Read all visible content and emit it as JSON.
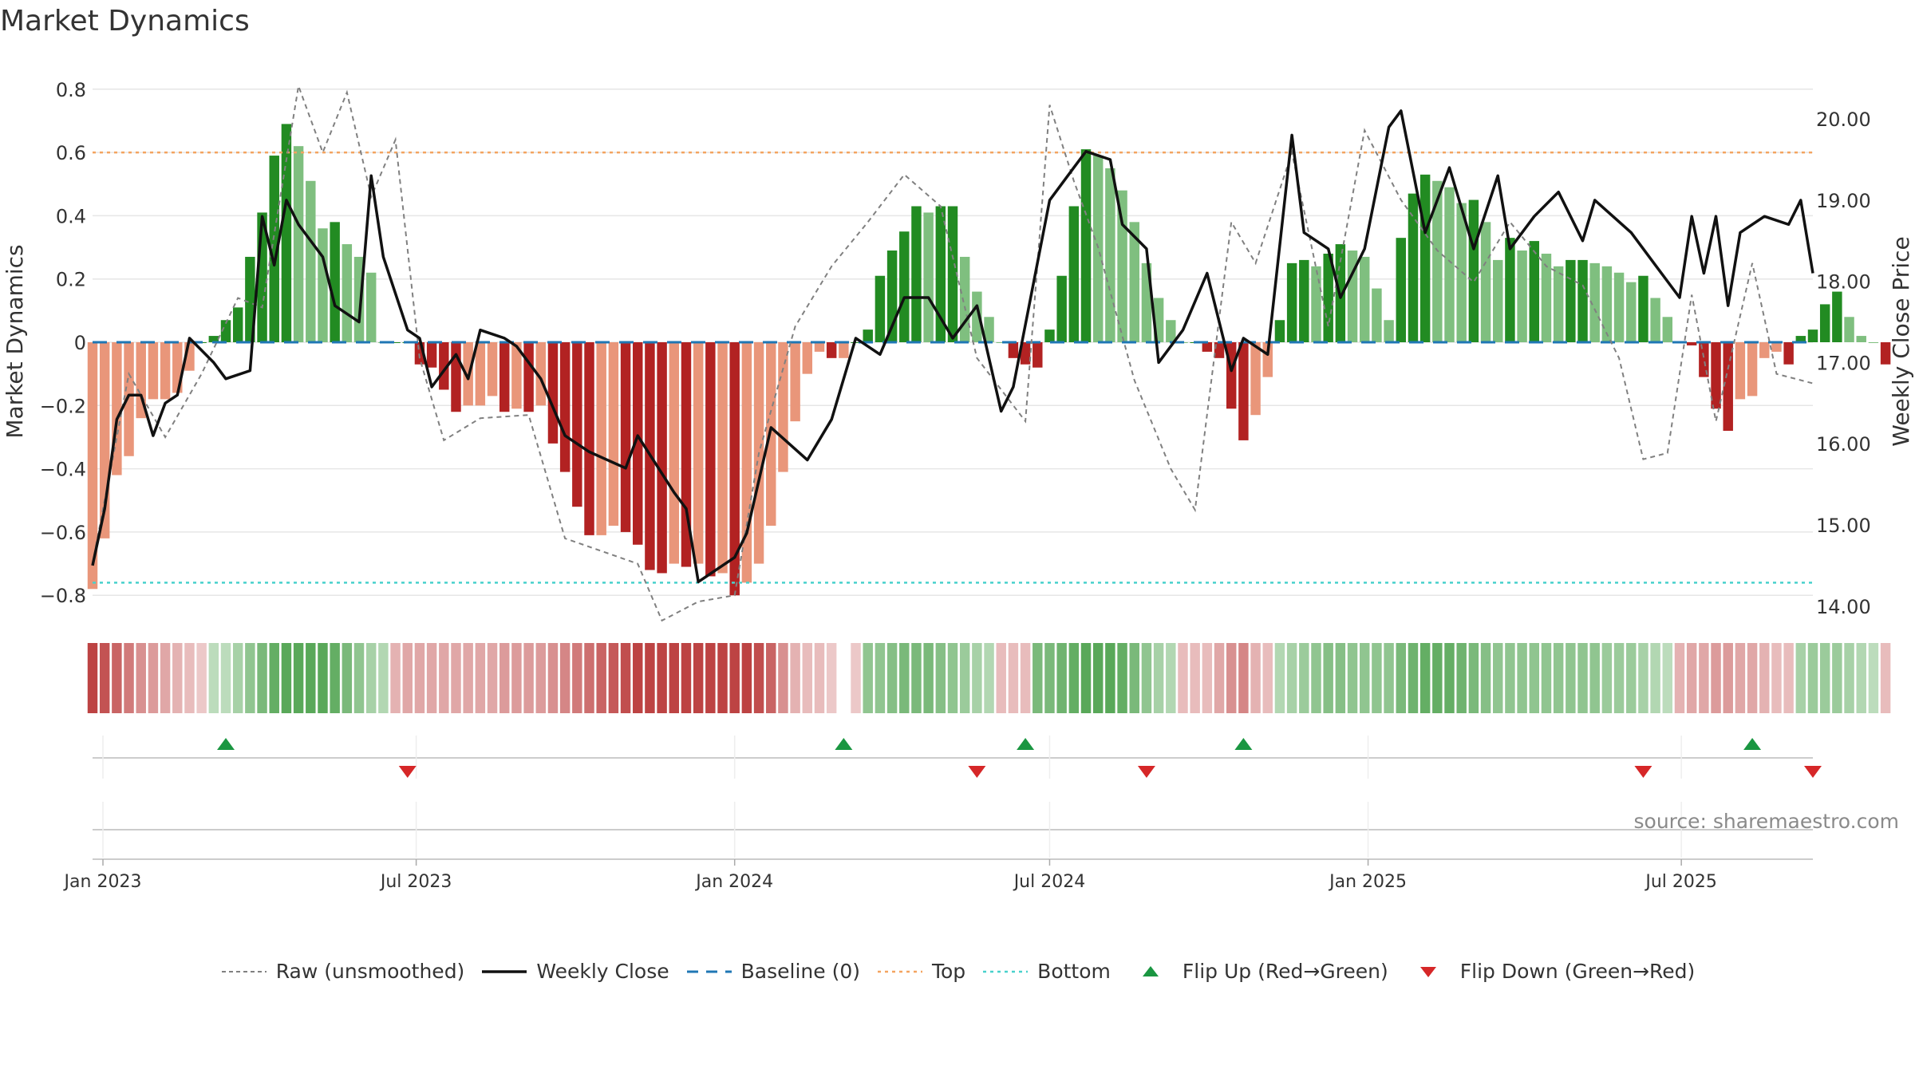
{
  "title": "Market Dynamics",
  "source": "source: sharemaestro.com",
  "colors": {
    "strong_green": "#228b22",
    "light_green": "#7fbf7f",
    "strong_red": "#b22222",
    "light_red": "#e9967a",
    "top_line": "#f4a460",
    "bottom_line": "#48d1cc",
    "baseline": "#1f77b4",
    "flip_up": "#1a9641",
    "flip_down": "#d62728"
  },
  "legend": [
    {
      "label": "Raw (unsmoothed)",
      "style": "dashed-gray"
    },
    {
      "label": "Weekly Close",
      "style": "solid-black"
    },
    {
      "label": "Baseline (0)",
      "style": "dashed-blue"
    },
    {
      "label": "Top",
      "style": "dotted-orange"
    },
    {
      "label": "Bottom",
      "style": "dotted-cyan"
    },
    {
      "label": "Flip Up (Red→Green)",
      "style": "triangle-up"
    },
    {
      "label": "Flip Down (Green→Red)",
      "style": "triangle-down"
    }
  ],
  "chart_data": {
    "type": "bar",
    "title": "Market Dynamics",
    "ylabel_left": "Market Dynamics",
    "ylabel_right": "Weekly Close Price",
    "ylim_left": [
      -0.86,
      0.86
    ],
    "ylim_right": [
      13.9,
      20.6
    ],
    "yticks_left": [
      "0.8",
      "0.6",
      "0.4",
      "0.2",
      "0",
      "−0.2",
      "−0.4",
      "−0.6",
      "−0.8"
    ],
    "yticks_left_values": [
      0.8,
      0.6,
      0.4,
      0.2,
      0,
      -0.2,
      -0.4,
      -0.6,
      -0.8
    ],
    "yticks_right": [
      "20.00",
      "19.00",
      "18.00",
      "17.00",
      "16.00",
      "15.00",
      "14.00"
    ],
    "yticks_right_values": [
      20,
      19,
      18,
      17,
      16,
      15,
      14
    ],
    "xticks": [
      "Jan 2023",
      "Jul 2023",
      "Jan 2024",
      "Jul 2024",
      "Jan 2025",
      "Jul 2025"
    ],
    "xticks_dates": [
      "2023-01-01",
      "2023-07-01",
      "2024-01-01",
      "2024-07-01",
      "2025-01-01",
      "2025-07-01"
    ],
    "x_range": [
      "2022-12-26",
      "2025-09-15"
    ],
    "top_threshold": 0.6,
    "bottom_threshold": -0.76,
    "grid": true,
    "legend_position": "bottom",
    "bar_series": {
      "name": "Market Dynamics",
      "start_date": "2022-12-26",
      "interval_days": 7,
      "values": [
        -0.78,
        -0.62,
        -0.42,
        -0.36,
        -0.24,
        -0.18,
        -0.18,
        -0.16,
        -0.09,
        0.0,
        0.02,
        0.07,
        0.11,
        0.27,
        0.41,
        0.59,
        0.69,
        0.62,
        0.51,
        0.36,
        0.38,
        0.31,
        0.27,
        0.22,
        0.0,
        0.0,
        0.0,
        -0.07,
        -0.08,
        -0.15,
        -0.22,
        -0.2,
        -0.2,
        -0.17,
        -0.22,
        -0.21,
        -0.22,
        -0.2,
        -0.32,
        -0.41,
        -0.52,
        -0.61,
        -0.61,
        -0.58,
        -0.6,
        -0.64,
        -0.72,
        -0.73,
        -0.7,
        -0.71,
        -0.7,
        -0.74,
        -0.73,
        -0.8,
        -0.76,
        -0.7,
        -0.58,
        -0.41,
        -0.25,
        -0.1,
        -0.03,
        -0.05,
        -0.05,
        0.0,
        0.04,
        0.21,
        0.29,
        0.35,
        0.43,
        0.41,
        0.43,
        0.43,
        0.27,
        0.16,
        0.08,
        0.0,
        -0.05,
        -0.07,
        -0.08,
        0.04,
        0.21,
        0.43,
        0.61,
        0.59,
        0.55,
        0.48,
        0.38,
        0.25,
        0.14,
        0.07,
        0.0,
        0.0,
        -0.03,
        -0.05,
        -0.21,
        -0.31,
        -0.23,
        -0.11,
        0.07,
        0.25,
        0.26,
        0.24,
        0.28,
        0.31,
        0.29,
        0.27,
        0.17,
        0.07,
        0.33,
        0.47,
        0.53,
        0.51,
        0.49,
        0.44,
        0.45,
        0.38,
        0.26,
        0.33,
        0.29,
        0.32,
        0.28,
        0.24,
        0.26,
        0.26,
        0.25,
        0.24,
        0.22,
        0.19,
        0.21,
        0.14,
        0.08,
        0.0,
        -0.01,
        -0.11,
        -0.21,
        -0.28,
        -0.18,
        -0.17,
        -0.05,
        -0.03,
        -0.07,
        0.02,
        0.04,
        0.12,
        0.16,
        0.08,
        0.02,
        0.0,
        -0.07
      ]
    },
    "raw_series": {
      "name": "Raw (unsmoothed)",
      "points": [
        [
          "2022-12-26",
          -0.7
        ],
        [
          "2023-01-16",
          -0.1
        ],
        [
          "2023-02-06",
          -0.3
        ],
        [
          "2023-02-27",
          -0.1
        ],
        [
          "2023-03-20",
          0.14
        ],
        [
          "2023-04-03",
          0.11
        ],
        [
          "2023-04-24",
          0.81
        ],
        [
          "2023-05-08",
          0.6
        ],
        [
          "2023-05-22",
          0.79
        ],
        [
          "2023-06-05",
          0.46
        ],
        [
          "2023-06-19",
          0.64
        ],
        [
          "2023-07-03",
          -0.05
        ],
        [
          "2023-07-17",
          -0.31
        ],
        [
          "2023-08-07",
          -0.24
        ],
        [
          "2023-09-04",
          -0.23
        ],
        [
          "2023-09-25",
          -0.62
        ],
        [
          "2023-10-16",
          -0.66
        ],
        [
          "2023-11-06",
          -0.7
        ],
        [
          "2023-11-20",
          -0.88
        ],
        [
          "2023-12-11",
          -0.82
        ],
        [
          "2024-01-01",
          -0.8
        ],
        [
          "2024-01-15",
          -0.35
        ],
        [
          "2024-02-05",
          0.05
        ],
        [
          "2024-02-26",
          0.24
        ],
        [
          "2024-03-18",
          0.38
        ],
        [
          "2024-04-08",
          0.53
        ],
        [
          "2024-04-29",
          0.43
        ],
        [
          "2024-05-20",
          -0.05
        ],
        [
          "2024-06-17",
          -0.25
        ],
        [
          "2024-07-01",
          0.75
        ],
        [
          "2024-07-15",
          0.51
        ],
        [
          "2024-07-29",
          0.3
        ],
        [
          "2024-08-19",
          -0.12
        ],
        [
          "2024-09-09",
          -0.4
        ],
        [
          "2024-09-23",
          -0.53
        ],
        [
          "2024-10-14",
          0.38
        ],
        [
          "2024-10-28",
          0.25
        ],
        [
          "2024-11-18",
          0.6
        ],
        [
          "2024-12-09",
          0.05
        ],
        [
          "2024-12-30",
          0.67
        ],
        [
          "2025-01-20",
          0.45
        ],
        [
          "2025-02-10",
          0.29
        ],
        [
          "2025-03-03",
          0.19
        ],
        [
          "2025-03-24",
          0.38
        ],
        [
          "2025-04-14",
          0.24
        ],
        [
          "2025-05-05",
          0.18
        ],
        [
          "2025-05-26",
          -0.05
        ],
        [
          "2025-06-09",
          -0.37
        ],
        [
          "2025-06-23",
          -0.35
        ],
        [
          "2025-07-07",
          0.15
        ],
        [
          "2025-07-21",
          -0.25
        ],
        [
          "2025-08-11",
          0.25
        ],
        [
          "2025-08-25",
          -0.1
        ],
        [
          "2025-09-15",
          -0.13
        ]
      ]
    },
    "close_series": {
      "name": "Weekly Close",
      "points": [
        [
          "2022-12-26",
          14.5
        ],
        [
          "2023-01-02",
          15.2
        ],
        [
          "2023-01-09",
          16.3
        ],
        [
          "2023-01-16",
          16.6
        ],
        [
          "2023-01-23",
          16.6
        ],
        [
          "2023-01-30",
          16.1
        ],
        [
          "2023-02-06",
          16.5
        ],
        [
          "2023-02-13",
          16.6
        ],
        [
          "2023-02-20",
          17.3
        ],
        [
          "2023-03-06",
          17.0
        ],
        [
          "2023-03-13",
          16.8
        ],
        [
          "2023-03-27",
          16.9
        ],
        [
          "2023-04-03",
          18.8
        ],
        [
          "2023-04-10",
          18.2
        ],
        [
          "2023-04-17",
          19.0
        ],
        [
          "2023-04-24",
          18.7
        ],
        [
          "2023-05-08",
          18.3
        ],
        [
          "2023-05-15",
          17.7
        ],
        [
          "2023-05-29",
          17.5
        ],
        [
          "2023-06-05",
          19.3
        ],
        [
          "2023-06-12",
          18.3
        ],
        [
          "2023-06-26",
          17.4
        ],
        [
          "2023-07-03",
          17.3
        ],
        [
          "2023-07-10",
          16.7
        ],
        [
          "2023-07-17",
          16.9
        ],
        [
          "2023-07-24",
          17.1
        ],
        [
          "2023-07-31",
          16.8
        ],
        [
          "2023-08-07",
          17.4
        ],
        [
          "2023-08-21",
          17.3
        ],
        [
          "2023-08-28",
          17.2
        ],
        [
          "2023-09-11",
          16.8
        ],
        [
          "2023-09-25",
          16.1
        ],
        [
          "2023-10-09",
          15.9
        ],
        [
          "2023-10-30",
          15.7
        ],
        [
          "2023-11-06",
          16.1
        ],
        [
          "2023-11-27",
          15.4
        ],
        [
          "2023-12-04",
          15.2
        ],
        [
          "2023-12-11",
          14.3
        ],
        [
          "2024-01-01",
          14.6
        ],
        [
          "2024-01-08",
          14.9
        ],
        [
          "2024-01-22",
          16.2
        ],
        [
          "2024-02-12",
          15.8
        ],
        [
          "2024-02-26",
          16.3
        ],
        [
          "2024-03-11",
          17.3
        ],
        [
          "2024-03-25",
          17.1
        ],
        [
          "2024-04-08",
          17.8
        ],
        [
          "2024-04-22",
          17.8
        ],
        [
          "2024-05-06",
          17.3
        ],
        [
          "2024-05-20",
          17.7
        ],
        [
          "2024-06-03",
          16.4
        ],
        [
          "2024-06-10",
          16.7
        ],
        [
          "2024-07-01",
          19.0
        ],
        [
          "2024-07-15",
          19.4
        ],
        [
          "2024-07-22",
          19.6
        ],
        [
          "2024-08-05",
          19.5
        ],
        [
          "2024-08-12",
          18.7
        ],
        [
          "2024-08-26",
          18.4
        ],
        [
          "2024-09-02",
          17.0
        ],
        [
          "2024-09-16",
          17.4
        ],
        [
          "2024-09-30",
          18.1
        ],
        [
          "2024-10-07",
          17.5
        ],
        [
          "2024-10-14",
          16.9
        ],
        [
          "2024-10-21",
          17.3
        ],
        [
          "2024-11-04",
          17.1
        ],
        [
          "2024-11-18",
          19.8
        ],
        [
          "2024-11-25",
          18.6
        ],
        [
          "2024-12-09",
          18.4
        ],
        [
          "2024-12-16",
          17.8
        ],
        [
          "2024-12-23",
          18.1
        ],
        [
          "2024-12-30",
          18.4
        ],
        [
          "2025-01-13",
          19.9
        ],
        [
          "2025-01-20",
          20.1
        ],
        [
          "2025-02-03",
          18.6
        ],
        [
          "2025-02-17",
          19.4
        ],
        [
          "2025-03-03",
          18.4
        ],
        [
          "2025-03-17",
          19.3
        ],
        [
          "2025-03-24",
          18.4
        ],
        [
          "2025-04-07",
          18.8
        ],
        [
          "2025-04-21",
          19.1
        ],
        [
          "2025-05-05",
          18.5
        ],
        [
          "2025-05-12",
          19.0
        ],
        [
          "2025-06-02",
          18.6
        ],
        [
          "2025-06-16",
          18.2
        ],
        [
          "2025-06-30",
          17.8
        ],
        [
          "2025-07-07",
          18.8
        ],
        [
          "2025-07-14",
          18.1
        ],
        [
          "2025-07-21",
          18.8
        ],
        [
          "2025-07-28",
          17.7
        ],
        [
          "2025-08-04",
          18.6
        ],
        [
          "2025-08-18",
          18.8
        ],
        [
          "2025-09-01",
          18.7
        ],
        [
          "2025-09-08",
          19.0
        ],
        [
          "2025-09-15",
          18.1
        ]
      ]
    },
    "regime_strip": {
      "name": "Regime",
      "start_date": "2022-12-26",
      "interval_days": 7,
      "levels": [
        -0.85,
        -0.78,
        -0.7,
        -0.6,
        -0.5,
        -0.45,
        -0.4,
        -0.35,
        -0.3,
        -0.25,
        0.3,
        0.3,
        0.4,
        0.5,
        0.6,
        0.7,
        0.75,
        0.75,
        0.75,
        0.75,
        0.7,
        0.6,
        0.5,
        0.4,
        0.35,
        -0.35,
        -0.4,
        -0.4,
        -0.4,
        -0.4,
        -0.4,
        -0.4,
        -0.4,
        -0.4,
        -0.45,
        -0.45,
        -0.45,
        -0.45,
        -0.5,
        -0.55,
        -0.6,
        -0.65,
        -0.7,
        -0.75,
        -0.8,
        -0.85,
        -0.85,
        -0.85,
        -0.85,
        -0.85,
        -0.85,
        -0.85,
        -0.85,
        -0.85,
        -0.85,
        -0.8,
        -0.7,
        -0.5,
        -0.35,
        -0.3,
        -0.3,
        -0.25,
        0.0,
        -0.25,
        0.5,
        0.5,
        0.55,
        0.6,
        0.6,
        0.6,
        0.55,
        0.5,
        0.45,
        0.4,
        0.35,
        -0.3,
        -0.3,
        -0.3,
        0.6,
        0.6,
        0.65,
        0.7,
        0.75,
        0.75,
        0.75,
        0.7,
        0.6,
        0.5,
        0.4,
        0.35,
        -0.3,
        -0.3,
        -0.3,
        -0.4,
        -0.5,
        -0.55,
        -0.35,
        -0.3,
        0.35,
        0.4,
        0.45,
        0.5,
        0.55,
        0.55,
        0.5,
        0.5,
        0.5,
        0.5,
        0.6,
        0.65,
        0.7,
        0.7,
        0.7,
        0.65,
        0.6,
        0.55,
        0.5,
        0.5,
        0.5,
        0.5,
        0.5,
        0.5,
        0.5,
        0.5,
        0.5,
        0.45,
        0.45,
        0.45,
        0.4,
        0.35,
        0.3,
        -0.35,
        -0.4,
        -0.4,
        -0.45,
        -0.45,
        -0.4,
        -0.4,
        -0.35,
        -0.3,
        -0.3,
        0.4,
        0.45,
        0.45,
        0.45,
        0.4,
        0.35,
        0.3,
        -0.3
      ]
    },
    "flip_up_dates": [
      "2023-03-13",
      "2024-03-04",
      "2024-06-17",
      "2024-10-21",
      "2025-08-11"
    ],
    "flip_down_dates": [
      "2023-06-26",
      "2024-05-20",
      "2024-08-26",
      "2025-06-09",
      "2025-09-15"
    ]
  }
}
